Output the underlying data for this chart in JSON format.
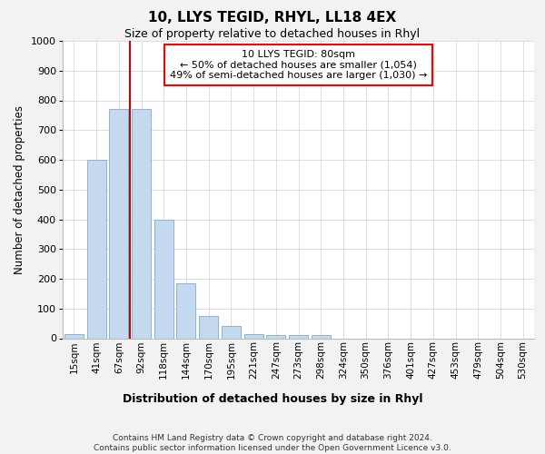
{
  "title": "10, LLYS TEGID, RHYL, LL18 4EX",
  "subtitle": "Size of property relative to detached houses in Rhyl",
  "xlabel_bottom": "Distribution of detached houses by size in Rhyl",
  "ylabel": "Number of detached properties",
  "footer": "Contains HM Land Registry data © Crown copyright and database right 2024.\nContains public sector information licensed under the Open Government Licence v3.0.",
  "categories": [
    "15sqm",
    "41sqm",
    "67sqm",
    "92sqm",
    "118sqm",
    "144sqm",
    "170sqm",
    "195sqm",
    "221sqm",
    "247sqm",
    "273sqm",
    "298sqm",
    "324sqm",
    "350sqm",
    "376sqm",
    "401sqm",
    "427sqm",
    "453sqm",
    "479sqm",
    "504sqm",
    "530sqm"
  ],
  "values": [
    15,
    600,
    770,
    770,
    400,
    185,
    75,
    40,
    15,
    12,
    10,
    10,
    0,
    0,
    0,
    0,
    0,
    0,
    0,
    0,
    0
  ],
  "bar_color": "#c5d9ee",
  "bar_edge_color": "#7aaed4",
  "vline_color": "#cc0000",
  "vline_pos": 2.5,
  "annotation_title": "10 LLYS TEGID: 80sqm",
  "annotation_line1": "← 50% of detached houses are smaller (1,054)",
  "annotation_line2": "49% of semi-detached houses are larger (1,030) →",
  "ylim": [
    0,
    1000
  ],
  "yticks": [
    0,
    100,
    200,
    300,
    400,
    500,
    600,
    700,
    800,
    900,
    1000
  ],
  "bg_color": "#f2f2f2",
  "plot_bg_color": "#ffffff",
  "grid_color": "#d0d0d0"
}
